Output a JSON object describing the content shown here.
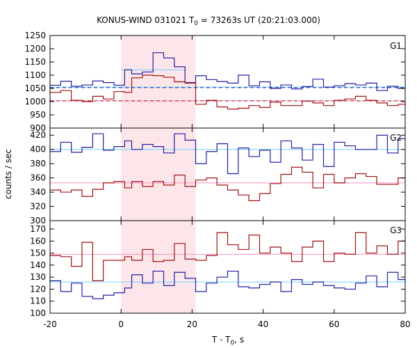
{
  "chart_data": {
    "type": "line",
    "title": "KONUS-WIND 031021 T",
    "title_sub": "0",
    "title_rest": " = 73263s UT (20:21:03.000)",
    "xlabel_main": "T - T",
    "xlabel_sub": "0",
    "xlabel_rest": ", s",
    "ylabel": "counts / sec",
    "xlim": [
      -20,
      80
    ],
    "xticks": [
      "-20",
      "0",
      "20",
      "40",
      "60",
      "80"
    ],
    "xtick_values": [
      -20,
      0,
      20,
      40,
      60,
      80
    ],
    "shaded_interval": [
      0,
      21
    ],
    "colors": {
      "blue": "#1f1fa0",
      "red": "#a01010",
      "cyan": "#6fd0ff",
      "pink": "#ff8fc8",
      "shade": "#fde6ea"
    },
    "panels": [
      {
        "label": "G1",
        "ylim": [
          900,
          1250
        ],
        "yticks": [
          900,
          950,
          1000,
          1050,
          1100,
          1150,
          1200,
          1250
        ],
        "series": [
          {
            "color": "blue",
            "x": [
              -20,
              -17,
              -14,
              -11,
              -8,
              -5,
              -2,
              1,
              3,
              6,
              9,
              12,
              15,
              18,
              21,
              24,
              27,
              30,
              33,
              36,
              39,
              42,
              45,
              48,
              51,
              54,
              57,
              60,
              63,
              66,
              69,
              72,
              75,
              78,
              80
            ],
            "y": [
              1062,
              1077,
              1058,
              1063,
              1078,
              1072,
              1062,
              1120,
              1105,
              1112,
              1185,
              1165,
              1132,
              1072,
              1098,
              1083,
              1076,
              1070,
              1100,
              1060,
              1075,
              1050,
              1063,
              1048,
              1057,
              1085,
              1055,
              1060,
              1068,
              1063,
              1070,
              1042,
              1058,
              1050,
              1050
            ]
          },
          {
            "color": "red",
            "x": [
              -20,
              -17,
              -14,
              -11,
              -8,
              -5,
              -2,
              1,
              3,
              6,
              9,
              12,
              15,
              18,
              21,
              24,
              27,
              30,
              33,
              36,
              39,
              42,
              45,
              48,
              51,
              54,
              57,
              60,
              63,
              66,
              69,
              72,
              75,
              78,
              80
            ],
            "y": [
              1035,
              1042,
              1005,
              1000,
              1020,
              1010,
              1038,
              1035,
              1090,
              1100,
              1098,
              1092,
              1075,
              1070,
              990,
              1005,
              980,
              972,
              975,
              985,
              978,
              998,
              985,
              985,
              1002,
              995,
              985,
              1005,
              1010,
              1020,
              1005,
              995,
              985,
              990,
              1000
            ]
          }
        ],
        "reference_lines": [
          {
            "color": "cyan",
            "y": 1055,
            "style": "solid"
          },
          {
            "color": "blue",
            "y": 1053,
            "style": "dashed"
          },
          {
            "color": "pink",
            "y": 1003,
            "style": "solid"
          },
          {
            "color": "red",
            "y": 1003,
            "style": "dashed"
          }
        ],
        "fitted_segments": [
          {
            "color": "cyan",
            "x": [
              0,
              18
            ],
            "y": 1120
          }
        ]
      },
      {
        "label": "G2",
        "ylim": [
          300,
          430
        ],
        "yticks": [
          300,
          320,
          340,
          360,
          380,
          400,
          420
        ],
        "series": [
          {
            "color": "blue",
            "x": [
              -20,
              -17,
              -14,
              -11,
              -8,
              -5,
              -2,
              1,
              3,
              6,
              9,
              12,
              15,
              18,
              21,
              24,
              27,
              30,
              33,
              36,
              39,
              42,
              45,
              48,
              51,
              54,
              57,
              60,
              63,
              66,
              69,
              72,
              75,
              78,
              80
            ],
            "y": [
              397,
              410,
              396,
              403,
              422,
              399,
              404,
              412,
              400,
              407,
              404,
              395,
              422,
              413,
              380,
              397,
              408,
              366,
              402,
              390,
              399,
              382,
              412,
              402,
              385,
              407,
              376,
              410,
              405,
              400,
              400,
              420,
              395,
              415,
              392
            ]
          },
          {
            "color": "red",
            "x": [
              -20,
              -17,
              -14,
              -11,
              -8,
              -5,
              -2,
              1,
              3,
              6,
              9,
              12,
              15,
              18,
              21,
              24,
              27,
              30,
              33,
              36,
              39,
              42,
              45,
              48,
              51,
              54,
              57,
              60,
              63,
              66,
              69,
              72,
              75,
              78,
              80
            ],
            "y": [
              343,
              340,
              343,
              334,
              344,
              353,
              355,
              346,
              355,
              348,
              355,
              350,
              364,
              348,
              357,
              360,
              350,
              343,
              336,
              328,
              338,
              352,
              365,
              375,
              368,
              346,
              365,
              353,
              360,
              366,
              362,
              351,
              351,
              360,
              355
            ]
          }
        ],
        "reference_lines": [
          {
            "color": "cyan",
            "y": 400,
            "style": "solid"
          },
          {
            "color": "pink",
            "y": 353,
            "style": "solid"
          }
        ],
        "fitted_segments": []
      },
      {
        "label": "G3",
        "ylim": [
          100,
          177
        ],
        "yticks": [
          100,
          110,
          120,
          130,
          140,
          150,
          160,
          170
        ],
        "series": [
          {
            "color": "blue",
            "x": [
              -20,
              -17,
              -14,
              -11,
              -8,
              -5,
              -2,
              1,
              3,
              6,
              9,
              12,
              15,
              18,
              21,
              24,
              27,
              30,
              33,
              36,
              39,
              42,
              45,
              48,
              51,
              54,
              57,
              60,
              63,
              66,
              69,
              72,
              75,
              78,
              80
            ],
            "y": [
              127,
              118,
              125,
              114,
              112,
              115,
              117,
              121,
              132,
              125,
              135,
              123,
              134,
              129,
              118,
              125,
              130,
              135,
              122,
              121,
              124,
              126,
              118,
              128,
              124,
              126,
              123,
              121,
              120,
              125,
              131,
              122,
              134,
              128,
              126
            ]
          },
          {
            "color": "red",
            "x": [
              -20,
              -17,
              -14,
              -11,
              -8,
              -5,
              -2,
              1,
              3,
              6,
              9,
              12,
              15,
              18,
              21,
              24,
              27,
              30,
              33,
              36,
              39,
              42,
              45,
              48,
              51,
              54,
              57,
              60,
              63,
              66,
              69,
              72,
              75,
              78,
              80
            ],
            "y": [
              148,
              147,
              139,
              159,
              127,
              144,
              144,
              147,
              144,
              153,
              143,
              144,
              158,
              145,
              144,
              148,
              167,
              157,
              153,
              165,
              150,
              155,
              150,
              143,
              155,
              160,
              143,
              150,
              149,
              167,
              150,
              156,
              149,
              160,
              150
            ]
          }
        ],
        "reference_lines": [
          {
            "color": "cyan",
            "y": 126,
            "style": "solid"
          },
          {
            "color": "pink",
            "y": 149,
            "style": "solid"
          }
        ],
        "fitted_segments": []
      }
    ]
  }
}
